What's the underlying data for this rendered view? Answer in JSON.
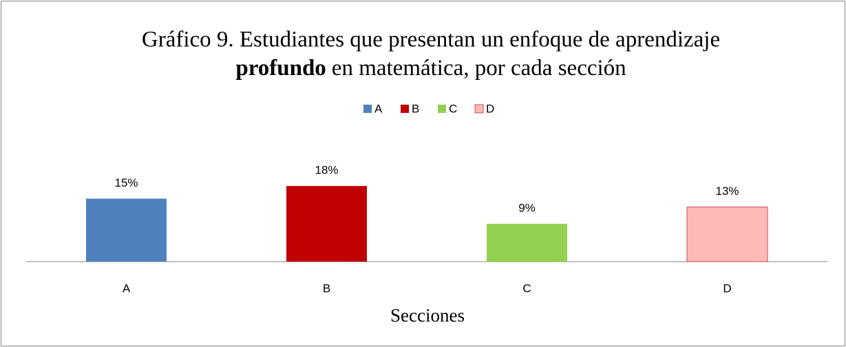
{
  "chart_data": {
    "type": "bar",
    "title": [
      "Gráfico 9. Estudiantes que presentan un enfoque de aprendizaje",
      "profundo",
      "en matemática, por cada sección"
    ],
    "x_label": "Secciones",
    "categories": [
      "A",
      "B",
      "C",
      "D"
    ],
    "values": [
      15,
      18,
      9,
      13
    ],
    "value_labels": [
      "15%",
      "18%",
      "9%",
      "13%"
    ],
    "colors": [
      "#4f81bd",
      "#c00000",
      "#92d050",
      "#ffb8b8"
    ],
    "ylim": [
      0,
      20
    ],
    "legend": "top"
  }
}
